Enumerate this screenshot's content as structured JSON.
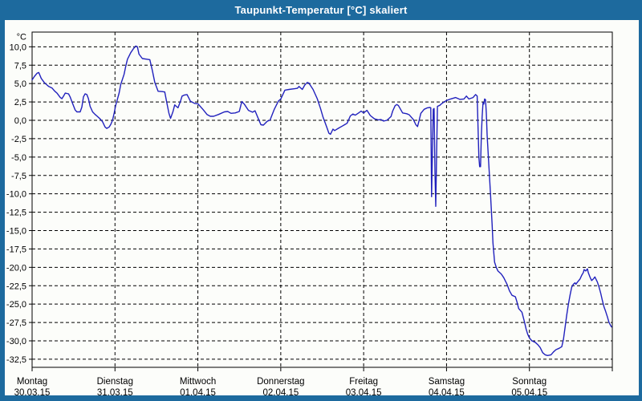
{
  "window": {
    "title": "Taupunkt-Temperatur [°C] skaliert"
  },
  "colors": {
    "titlebar": "#1d6a9e",
    "window_border": "#1d6a9e",
    "chart_background": "#fcfdfa",
    "grid": "#000000",
    "frame": "#000000",
    "line": "#2121bd",
    "title_text": "#ffffff",
    "label_text": "#000000"
  },
  "chart_data": {
    "type": "line",
    "title": "Taupunkt-Temperatur [°C] skaliert",
    "y_unit_label": "°C",
    "ylabel": "",
    "xlabel": "",
    "ylim": [
      -33.6,
      12.0
    ],
    "x_range_days": [
      0,
      7
    ],
    "grid": "dashed",
    "legend_position": "none",
    "y_ticks": {
      "values": [
        10,
        7.5,
        5,
        2.5,
        0,
        -2.5,
        -5,
        -7.5,
        -10,
        -12.5,
        -15,
        -17.5,
        -20,
        -22.5,
        -25,
        -27.5,
        -30,
        -32.5
      ],
      "labels": [
        "10,0",
        "7,5",
        "5,0",
        "2,5",
        "0,0",
        "-2,5",
        "-5,0",
        "-7,5",
        "-10,0",
        "-12,5",
        "-15,0",
        "-17,5",
        "-20,0",
        "-22,5",
        "-25,0",
        "-27,5",
        "-30,0",
        "-32,5"
      ]
    },
    "x_days": [
      {
        "label": "Montag",
        "date": "30.03.15"
      },
      {
        "label": "Dienstag",
        "date": "31.03.15"
      },
      {
        "label": "Mittwoch",
        "date": "01.04.15"
      },
      {
        "label": "Donnerstag",
        "date": "02.04.15"
      },
      {
        "label": "Freitag",
        "date": "03.04.15"
      },
      {
        "label": "Samstag",
        "date": "04.04.15"
      },
      {
        "label": "Sonntag",
        "date": "05.04.15"
      }
    ],
    "series": [
      {
        "name": "Taupunkt-Temperatur",
        "color": "#2121bd",
        "points": [
          [
            0,
            5.5
          ],
          [
            0.03,
            6
          ],
          [
            0.06,
            6.4
          ],
          [
            0.08,
            6.5
          ],
          [
            0.11,
            5.7
          ],
          [
            0.15,
            5.1
          ],
          [
            0.17,
            4.9
          ],
          [
            0.2,
            4.6
          ],
          [
            0.24,
            4.4
          ],
          [
            0.27,
            4
          ],
          [
            0.3,
            3.7
          ],
          [
            0.34,
            3.1
          ],
          [
            0.36,
            2.95
          ],
          [
            0.38,
            3.3
          ],
          [
            0.4,
            3.7
          ],
          [
            0.44,
            3.6
          ],
          [
            0.46,
            3.15
          ],
          [
            0.49,
            2.25
          ],
          [
            0.52,
            1.4
          ],
          [
            0.54,
            1.15
          ],
          [
            0.58,
            1.15
          ],
          [
            0.6,
            1.8
          ],
          [
            0.62,
            3.2
          ],
          [
            0.64,
            3.6
          ],
          [
            0.66,
            3.5
          ],
          [
            0.68,
            2.95
          ],
          [
            0.7,
            1.9
          ],
          [
            0.73,
            1.15
          ],
          [
            0.76,
            0.8
          ],
          [
            0.78,
            0.6
          ],
          [
            0.82,
            0.2
          ],
          [
            0.85,
            -0.2
          ],
          [
            0.88,
            -0.9
          ],
          [
            0.9,
            -1.1
          ],
          [
            0.93,
            -0.9
          ],
          [
            0.95,
            -0.55
          ],
          [
            0.97,
            0
          ],
          [
            0.99,
            1
          ],
          [
            1.01,
            2.1
          ],
          [
            1.03,
            2.9
          ],
          [
            1.05,
            3.7
          ],
          [
            1.07,
            4.9
          ],
          [
            1.11,
            6.25
          ],
          [
            1.13,
            7.35
          ],
          [
            1.15,
            8.3
          ],
          [
            1.19,
            9.2
          ],
          [
            1.22,
            9.7
          ],
          [
            1.25,
            10.1
          ],
          [
            1.27,
            10
          ],
          [
            1.29,
            9
          ],
          [
            1.33,
            8.4
          ],
          [
            1.39,
            8.3
          ],
          [
            1.42,
            8.25
          ],
          [
            1.45,
            6.8
          ],
          [
            1.48,
            5.15
          ],
          [
            1.52,
            3.95
          ],
          [
            1.57,
            3.9
          ],
          [
            1.6,
            3.85
          ],
          [
            1.63,
            2.1
          ],
          [
            1.65,
            1
          ],
          [
            1.67,
            0.25
          ],
          [
            1.7,
            1.2
          ],
          [
            1.72,
            2.1
          ],
          [
            1.74,
            1.9
          ],
          [
            1.76,
            1.7
          ],
          [
            1.79,
            2.6
          ],
          [
            1.81,
            3.3
          ],
          [
            1.84,
            3.45
          ],
          [
            1.87,
            3.5
          ],
          [
            1.91,
            2.6
          ],
          [
            1.96,
            2.3
          ],
          [
            2,
            2.25
          ],
          [
            2.06,
            1.5
          ],
          [
            2.11,
            0.8
          ],
          [
            2.15,
            0.55
          ],
          [
            2.19,
            0.55
          ],
          [
            2.25,
            0.8
          ],
          [
            2.32,
            1.15
          ],
          [
            2.36,
            1.2
          ],
          [
            2.4,
            0.95
          ],
          [
            2.45,
            1
          ],
          [
            2.5,
            1.2
          ],
          [
            2.53,
            2.55
          ],
          [
            2.56,
            2.2
          ],
          [
            2.61,
            1.35
          ],
          [
            2.66,
            1.1
          ],
          [
            2.69,
            1.3
          ],
          [
            2.73,
            0.2
          ],
          [
            2.76,
            -0.6
          ],
          [
            2.79,
            -0.65
          ],
          [
            2.84,
            -0.1
          ],
          [
            2.87,
            0
          ],
          [
            2.92,
            1.45
          ],
          [
            2.97,
            2.6
          ],
          [
            3,
            2.9
          ],
          [
            3.05,
            4.1
          ],
          [
            3.1,
            4.2
          ],
          [
            3.17,
            4.3
          ],
          [
            3.2,
            4.35
          ],
          [
            3.22,
            4.6
          ],
          [
            3.26,
            4.2
          ],
          [
            3.29,
            4.8
          ],
          [
            3.32,
            5.15
          ],
          [
            3.34,
            5.05
          ],
          [
            3.39,
            4.2
          ],
          [
            3.44,
            2.95
          ],
          [
            3.48,
            1.6
          ],
          [
            3.51,
            0.45
          ],
          [
            3.55,
            -0.8
          ],
          [
            3.58,
            -1.75
          ],
          [
            3.6,
            -1.9
          ],
          [
            3.63,
            -1.2
          ],
          [
            3.65,
            -1.4
          ],
          [
            3.7,
            -1.05
          ],
          [
            3.74,
            -0.8
          ],
          [
            3.77,
            -0.6
          ],
          [
            3.8,
            -0.4
          ],
          [
            3.84,
            0.6
          ],
          [
            3.87,
            0.85
          ],
          [
            3.9,
            0.7
          ],
          [
            3.94,
            1
          ],
          [
            3.97,
            1.25
          ],
          [
            4,
            1
          ],
          [
            4.04,
            1.35
          ],
          [
            4.08,
            0.65
          ],
          [
            4.13,
            0.2
          ],
          [
            4.18,
            0.05
          ],
          [
            4.21,
            0.1
          ],
          [
            4.24,
            -0.1
          ],
          [
            4.28,
            0
          ],
          [
            4.33,
            0.5
          ],
          [
            4.35,
            1.25
          ],
          [
            4.38,
            2
          ],
          [
            4.4,
            2.15
          ],
          [
            4.42,
            2
          ],
          [
            4.47,
            1
          ],
          [
            4.52,
            0.9
          ],
          [
            4.55,
            0.75
          ],
          [
            4.6,
            0.1
          ],
          [
            4.63,
            -0.6
          ],
          [
            4.65,
            -0.85
          ],
          [
            4.67,
            0
          ],
          [
            4.69,
            0.95
          ],
          [
            4.73,
            1.5
          ],
          [
            4.77,
            1.7
          ],
          [
            4.8,
            1.75
          ],
          [
            4.81,
            1.7
          ],
          [
            4.82,
            -10.4
          ],
          [
            4.83,
            -4
          ],
          [
            4.84,
            1.5
          ],
          [
            4.85,
            1.6
          ],
          [
            4.86,
            -7
          ],
          [
            4.87,
            -11.7
          ],
          [
            4.88,
            -5
          ],
          [
            4.89,
            1.9
          ],
          [
            4.92,
            2.05
          ],
          [
            4.94,
            2.25
          ],
          [
            4.97,
            2.5
          ],
          [
            5,
            2.7
          ],
          [
            5.05,
            2.9
          ],
          [
            5.11,
            3.1
          ],
          [
            5.16,
            2.85
          ],
          [
            5.21,
            2.9
          ],
          [
            5.24,
            3.3
          ],
          [
            5.27,
            2.9
          ],
          [
            5.32,
            3.1
          ],
          [
            5.35,
            3.5
          ],
          [
            5.37,
            3.3
          ],
          [
            5.38,
            -1
          ],
          [
            5.39,
            -5
          ],
          [
            5.4,
            -6.3
          ],
          [
            5.41,
            -6.3
          ],
          [
            5.42,
            -2.1
          ],
          [
            5.43,
            0.5
          ],
          [
            5.44,
            2.4
          ],
          [
            5.45,
            2.2
          ],
          [
            5.46,
            2.9
          ],
          [
            5.47,
            2.8
          ],
          [
            5.48,
            1
          ],
          [
            5.49,
            -2
          ],
          [
            5.51,
            -6
          ],
          [
            5.53,
            -10
          ],
          [
            5.55,
            -14.1
          ],
          [
            5.56,
            -16.7
          ],
          [
            5.58,
            -19.3
          ],
          [
            5.6,
            -20
          ],
          [
            5.62,
            -20.5
          ],
          [
            5.66,
            -20.9
          ],
          [
            5.69,
            -21.4
          ],
          [
            5.73,
            -22.3
          ],
          [
            5.76,
            -23.2
          ],
          [
            5.79,
            -23.8
          ],
          [
            5.83,
            -24
          ],
          [
            5.85,
            -24.7
          ],
          [
            5.87,
            -25.6
          ],
          [
            5.91,
            -26.1
          ],
          [
            5.94,
            -27.4
          ],
          [
            5.96,
            -28.4
          ],
          [
            5.98,
            -29.1
          ],
          [
            6,
            -29.6
          ],
          [
            6.03,
            -30
          ],
          [
            6.07,
            -30.2
          ],
          [
            6.1,
            -30.5
          ],
          [
            6.13,
            -30.9
          ],
          [
            6.16,
            -31.6
          ],
          [
            6.19,
            -31.9
          ],
          [
            6.22,
            -32
          ],
          [
            6.26,
            -31.9
          ],
          [
            6.29,
            -31.5
          ],
          [
            6.32,
            -31.2
          ],
          [
            6.36,
            -31
          ],
          [
            6.39,
            -30.8
          ],
          [
            6.41,
            -29.8
          ],
          [
            6.43,
            -28.2
          ],
          [
            6.45,
            -26.5
          ],
          [
            6.47,
            -25
          ],
          [
            6.49,
            -23.8
          ],
          [
            6.51,
            -22.7
          ],
          [
            6.53,
            -22.3
          ],
          [
            6.55,
            -22.1
          ],
          [
            6.56,
            -22.3
          ],
          [
            6.58,
            -22
          ],
          [
            6.61,
            -21.6
          ],
          [
            6.63,
            -21.1
          ],
          [
            6.65,
            -20.7
          ],
          [
            6.66,
            -20.3
          ],
          [
            6.68,
            -20.5
          ],
          [
            6.7,
            -20.2
          ],
          [
            6.71,
            -20.7
          ],
          [
            6.73,
            -21.3
          ],
          [
            6.75,
            -21.8
          ],
          [
            6.77,
            -21.6
          ],
          [
            6.79,
            -21.3
          ],
          [
            6.82,
            -22
          ],
          [
            6.84,
            -22.7
          ],
          [
            6.86,
            -23.5
          ],
          [
            6.88,
            -24.5
          ],
          [
            6.9,
            -25.4
          ],
          [
            6.92,
            -26
          ],
          [
            6.94,
            -26.7
          ],
          [
            6.96,
            -27.5
          ],
          [
            6.98,
            -27.9
          ],
          [
            6.99,
            -28.1
          ]
        ]
      }
    ]
  }
}
